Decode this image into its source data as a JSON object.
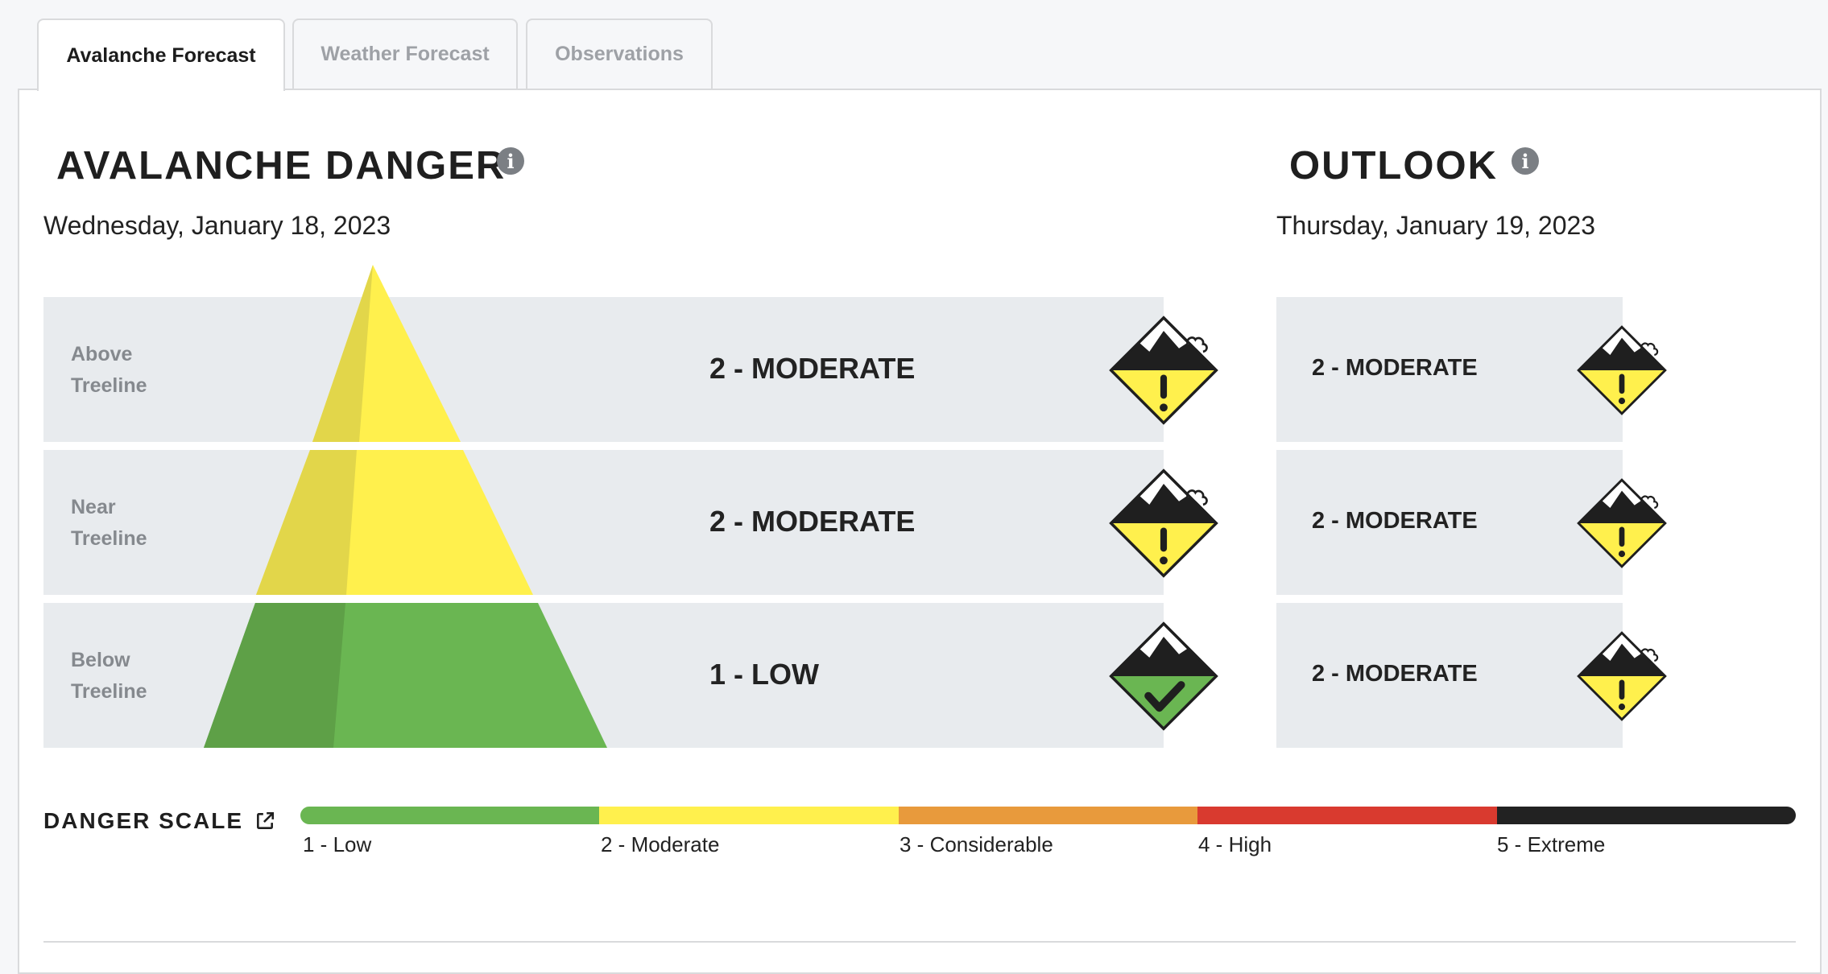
{
  "tabs": [
    {
      "label": "Avalanche Forecast",
      "active": true
    },
    {
      "label": "Weather Forecast",
      "active": false
    },
    {
      "label": "Observations",
      "active": false
    }
  ],
  "danger": {
    "title": "AVALANCHE DANGER",
    "date": "Wednesday, January 18, 2023",
    "bands": [
      {
        "label_line1": "Above",
        "label_line2": "Treeline",
        "rating": "2 - MODERATE",
        "level": 2
      },
      {
        "label_line1": "Near",
        "label_line2": "Treeline",
        "rating": "2 - MODERATE",
        "level": 2
      },
      {
        "label_line1": "Below",
        "label_line2": "Treeline",
        "rating": "1 - LOW",
        "level": 1
      }
    ]
  },
  "outlook": {
    "title": "OUTLOOK",
    "date": "Thursday, January 19, 2023",
    "bands": [
      {
        "rating": "2 - MODERATE",
        "level": 2
      },
      {
        "rating": "2 - MODERATE",
        "level": 2
      },
      {
        "rating": "2 - MODERATE",
        "level": 2
      }
    ]
  },
  "scale": {
    "title": "DANGER SCALE",
    "levels": [
      {
        "label": "1 - Low",
        "color": "#6ab652"
      },
      {
        "label": "2 - Moderate",
        "color": "#fff04d"
      },
      {
        "label": "3 - Considerable",
        "color": "#e89a3c"
      },
      {
        "label": "4 - High",
        "color": "#d93a2f"
      },
      {
        "label": "5 - Extreme",
        "color": "#222222"
      }
    ]
  },
  "icons": {
    "info": "info-icon",
    "external_link": "external-link-icon",
    "danger_moderate": "moderate-danger-icon",
    "danger_low": "low-danger-icon"
  }
}
